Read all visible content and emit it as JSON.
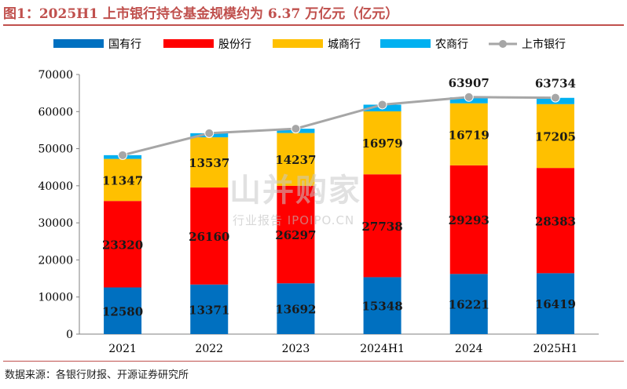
{
  "title": "图1：2025H1 上市银行持仓基金规模约为 6.37 万亿元（亿元）",
  "source": "数据来源：各银行财报、开源证券研究所",
  "watermark": {
    "main": "⼭并购家",
    "sub": "行业报告 IPOIPO.CN"
  },
  "chart_data": {
    "type": "bar",
    "stacked": true,
    "categories": [
      "2021",
      "2022",
      "2023",
      "2024H1",
      "2024",
      "2025H1"
    ],
    "ylim": [
      0,
      70000
    ],
    "yticks": [
      0,
      10000,
      20000,
      30000,
      40000,
      50000,
      60000,
      70000
    ],
    "legend_position": "top",
    "grid": false,
    "series": [
      {
        "name": "国有行",
        "color": "#0070c0",
        "values": [
          12580,
          13371,
          13692,
          15348,
          16221,
          16419
        ],
        "labels": [
          true,
          true,
          true,
          true,
          true,
          true
        ]
      },
      {
        "name": "股份行",
        "color": "#ff0000",
        "values": [
          23320,
          26160,
          26297,
          27738,
          29293,
          28383
        ],
        "labels": [
          true,
          true,
          true,
          true,
          true,
          true
        ]
      },
      {
        "name": "城商行",
        "color": "#ffc000",
        "values": [
          11347,
          13537,
          14237,
          16979,
          16719,
          17205
        ],
        "labels": [
          true,
          true,
          true,
          true,
          true,
          true
        ]
      },
      {
        "name": "农商行",
        "color": "#00b0f0",
        "values": [
          1000,
          1100,
          1150,
          1800,
          1600,
          1700
        ],
        "labels": [
          false,
          false,
          false,
          false,
          false,
          false
        ]
      }
    ],
    "line": {
      "name": "上市银行",
      "color": "#a6a6a6",
      "values": [
        48250,
        54170,
        55380,
        61870,
        63907,
        63734
      ],
      "labels": [
        false,
        false,
        false,
        false,
        true,
        true
      ]
    }
  }
}
